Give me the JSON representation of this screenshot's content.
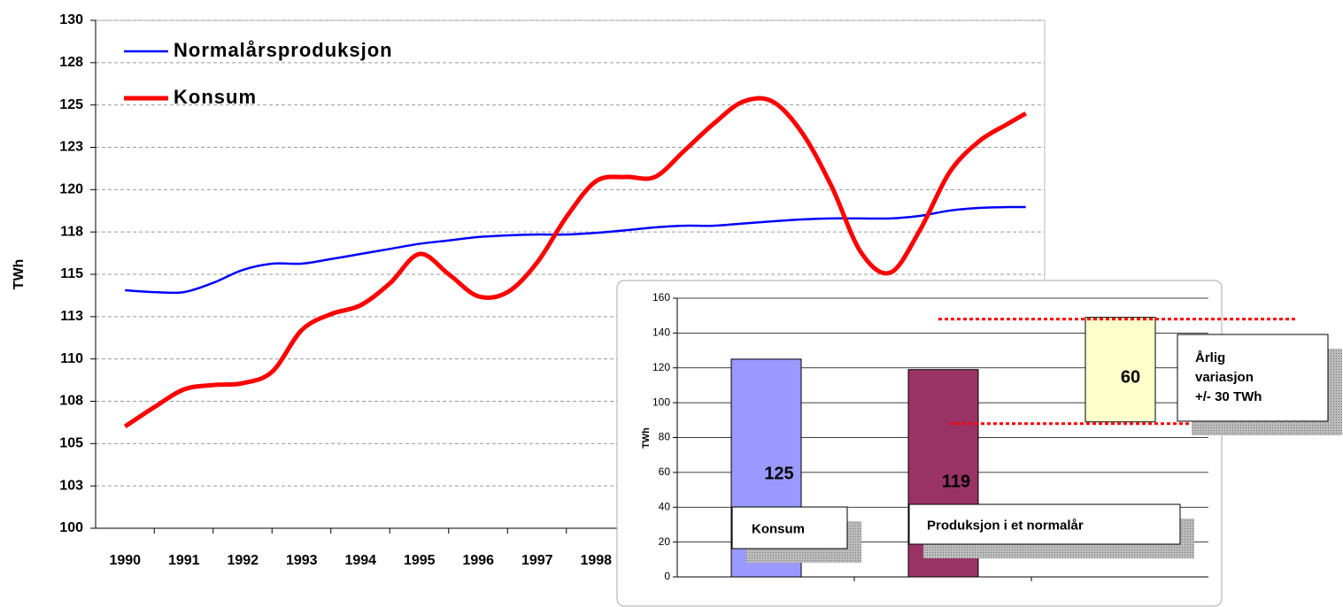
{
  "chart_data": [
    {
      "type": "line",
      "ylabel": "TWh",
      "x": [
        1990,
        1990.5,
        1991,
        1991.5,
        1992,
        1992.5,
        1993,
        1993.5,
        1994,
        1994.5,
        1995,
        1995.5,
        1996,
        1996.5,
        1997,
        1997.5,
        1998,
        1998.5,
        1999,
        1999.5,
        2000,
        2000.5,
        2001,
        2001.5,
        2002,
        2002.5,
        2003,
        2003.5,
        2004,
        2004.5,
        2005,
        2005.3
      ],
      "series": [
        {
          "name": "Normalårsproduksjon",
          "color": "#0000ff",
          "values": [
            114.06,
            113.95,
            113.95,
            114.5,
            115.26,
            115.63,
            115.63,
            115.9,
            116.2,
            116.5,
            116.8,
            117.0,
            117.2,
            117.3,
            117.35,
            117.35,
            117.45,
            117.6,
            117.77,
            117.87,
            117.87,
            118.0,
            118.13,
            118.24,
            118.3,
            118.3,
            118.3,
            118.45,
            118.76,
            118.92,
            118.97,
            118.97
          ]
        },
        {
          "name": "Konsum",
          "color": "#ff0000",
          "values": [
            106.01,
            107.16,
            108.2,
            108.46,
            108.57,
            109.25,
            111.7,
            112.65,
            113.17,
            114.47,
            116.2,
            115.0,
            113.7,
            113.95,
            115.7,
            118.4,
            120.5,
            120.75,
            120.75,
            122.3,
            123.9,
            125.2,
            125.2,
            123.36,
            120.2,
            116.3,
            115.1,
            117.6,
            121.0,
            122.84,
            123.9,
            124.5
          ]
        }
      ],
      "xlim": [
        1989.5,
        2005.62
      ],
      "xticks": [
        1990,
        1991,
        1992,
        1993,
        1994,
        1995,
        1996,
        1997,
        1998
      ],
      "ylim": [
        100,
        130
      ],
      "yticks": [
        100,
        {
          "value": 102.5,
          "label": "103"
        },
        105,
        {
          "value": 107.5,
          "label": "108"
        },
        110,
        {
          "value": 112.5,
          "label": "113"
        },
        115,
        {
          "value": 117.5,
          "label": "118"
        },
        120,
        {
          "value": 122.5,
          "label": "123"
        },
        125,
        {
          "value": 127.5,
          "label": "128"
        },
        130
      ],
      "grid": true,
      "legend": "top-left"
    },
    {
      "type": "bar",
      "ylabel": "TWh",
      "values": [
        125,
        119,
        60
      ],
      "bases": [
        0,
        0,
        89
      ],
      "colors": [
        "#9999ff",
        "#993366",
        "#ffffcc"
      ],
      "annotations": [
        "Konsum",
        "Produksjon i et normalår",
        [
          "Årlig",
          "variasjon",
          "+/- 30 TWh"
        ]
      ],
      "ylim": [
        0,
        160
      ],
      "yticks": [
        0,
        20,
        40,
        60,
        80,
        100,
        120,
        140,
        160
      ],
      "grid": true
    }
  ]
}
